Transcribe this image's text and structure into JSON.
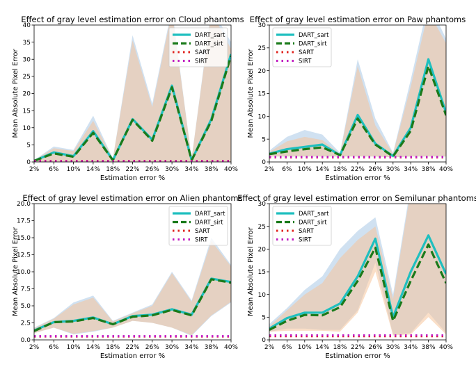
{
  "chart_data": [
    {
      "type": "line",
      "title": "Effect of gray level estimation error on Cloud phantoms",
      "xlabel": "Estimation error %",
      "ylabel": "Mean Absolute Pixel Error",
      "categories": [
        "2%",
        "6%",
        "10%",
        "14%",
        "18%",
        "22%",
        "26%",
        "30%",
        "34%",
        "38%",
        "40%"
      ],
      "ylim": [
        0,
        40
      ],
      "yticks": [
        0,
        5,
        10,
        15,
        20,
        25,
        30,
        35,
        40
      ],
      "legend": "top-right",
      "series": [
        {
          "name": "DART_sart",
          "style": "solid",
          "color": "#1fbfbf",
          "values": [
            0.3,
            2.8,
            1.7,
            9.0,
            0.5,
            12.5,
            6.5,
            22.3,
            0.5,
            12.5,
            31.5
          ],
          "band_low": [
            0,
            0,
            0,
            0,
            0,
            0,
            0,
            0,
            0,
            0,
            0
          ],
          "band_high": [
            0.5,
            4.5,
            3.5,
            13.5,
            1.0,
            37.0,
            17.0,
            45.0,
            1.0,
            45.0,
            35.0
          ]
        },
        {
          "name": "DART_sirt",
          "style": "dashed",
          "color": "#1a7a1a",
          "values": [
            0.3,
            2.5,
            1.5,
            8.5,
            0.5,
            12.3,
            6.2,
            21.8,
            0.5,
            12.0,
            31.0
          ],
          "band_low": [
            0,
            0,
            0,
            0,
            0,
            0,
            0,
            0,
            0,
            0,
            0
          ],
          "band_high": [
            0.5,
            4.0,
            3.2,
            12.0,
            1.0,
            35.5,
            16.0,
            44.0,
            1.0,
            44.0,
            33.0
          ]
        },
        {
          "name": "SART",
          "style": "dotted",
          "color": "#e0201b",
          "values": [
            0.3,
            0.3,
            0.3,
            0.3,
            0.3,
            0.3,
            0.3,
            0.3,
            0.3,
            0.3,
            0.3
          ]
        },
        {
          "name": "SIRT",
          "style": "dotted",
          "color": "#c019c0",
          "values": [
            0.2,
            0.2,
            0.2,
            0.2,
            0.2,
            0.2,
            0.2,
            0.2,
            0.2,
            0.2,
            0.2
          ]
        }
      ]
    },
    {
      "type": "line",
      "title": "Effect of gray level estimation error on Paw phantoms",
      "xlabel": "Estimation error %",
      "ylabel": "Mean Absolute Pixel Error",
      "categories": [
        "2%",
        "6%",
        "10%",
        "14%",
        "18%",
        "22%",
        "26%",
        "30%",
        "34%",
        "38%",
        "40%"
      ],
      "ylim": [
        0,
        30
      ],
      "yticks": [
        0,
        5,
        10,
        15,
        20,
        25,
        30
      ],
      "legend": "top-left",
      "series": [
        {
          "name": "DART_sart",
          "style": "solid",
          "color": "#1fbfbf",
          "values": [
            1.8,
            2.8,
            3.3,
            3.8,
            1.5,
            10.3,
            4.0,
            1.3,
            7.5,
            22.5,
            10.8
          ],
          "band_low": [
            1.2,
            1.2,
            1.2,
            1.2,
            1.2,
            1.2,
            1.2,
            1.0,
            1.2,
            1.2,
            1.2
          ],
          "band_high": [
            2.5,
            5.5,
            7.0,
            6.0,
            2.0,
            22.5,
            9.5,
            2.0,
            18.0,
            35.0,
            27.0
          ]
        },
        {
          "name": "DART_sirt",
          "style": "dashed",
          "color": "#1a7a1a",
          "values": [
            1.7,
            2.3,
            2.8,
            3.2,
            1.5,
            9.5,
            3.8,
            1.2,
            6.8,
            21.0,
            10.2
          ],
          "band_low": [
            1.2,
            1.2,
            1.2,
            1.2,
            1.2,
            1.2,
            1.2,
            1.0,
            1.2,
            1.2,
            1.2
          ],
          "band_high": [
            2.2,
            4.5,
            5.5,
            4.8,
            1.8,
            21.0,
            8.0,
            1.8,
            16.5,
            33.0,
            26.0
          ]
        },
        {
          "name": "SART",
          "style": "dotted",
          "color": "#e0201b",
          "values": [
            1.0,
            1.0,
            1.0,
            1.0,
            1.0,
            1.0,
            1.0,
            1.0,
            1.0,
            1.0,
            1.0
          ]
        },
        {
          "name": "SIRT",
          "style": "dotted",
          "color": "#c019c0",
          "values": [
            1.1,
            1.1,
            1.1,
            1.1,
            1.1,
            1.1,
            1.1,
            1.1,
            1.1,
            1.1,
            1.1
          ]
        }
      ]
    },
    {
      "type": "line",
      "title": "Effect of gray level estimation error on Alien phantoms",
      "xlabel": "Estimation error %",
      "ylabel": "Mean Absolute Pixel Error",
      "categories": [
        "2%",
        "6%",
        "10%",
        "14%",
        "18%",
        "22%",
        "26%",
        "30%",
        "34%",
        "38%",
        "40%"
      ],
      "ylim": [
        0,
        20
      ],
      "yticks": [
        0.0,
        2.5,
        5.0,
        7.5,
        10.0,
        12.5,
        15.0,
        17.5,
        20.0
      ],
      "ytick_labels": [
        "0.0",
        "2.5",
        "5.0",
        "7.5",
        "10.0",
        "12.5",
        "15.0",
        "17.5",
        "20.0"
      ],
      "legend": "top-right",
      "series": [
        {
          "name": "DART_sart",
          "style": "solid",
          "color": "#1fbfbf",
          "values": [
            1.4,
            2.6,
            2.8,
            3.3,
            2.3,
            3.5,
            3.7,
            4.5,
            3.7,
            9.0,
            8.5
          ],
          "band_low": [
            1.0,
            1.8,
            0.8,
            1.2,
            1.8,
            2.8,
            2.5,
            1.8,
            0.6,
            3.5,
            5.5
          ],
          "band_high": [
            1.8,
            3.2,
            5.5,
            6.5,
            2.8,
            4.0,
            5.2,
            10.0,
            5.8,
            15.0,
            11.0
          ]
        },
        {
          "name": "DART_sirt",
          "style": "dashed",
          "color": "#1a7a1a",
          "values": [
            1.3,
            2.6,
            2.7,
            3.2,
            2.3,
            3.4,
            3.6,
            4.4,
            3.6,
            8.9,
            8.4
          ],
          "band_low": [
            1.0,
            1.8,
            0.9,
            1.3,
            1.8,
            2.8,
            2.5,
            1.8,
            0.7,
            3.6,
            5.6
          ],
          "band_high": [
            1.7,
            3.1,
            5.2,
            6.2,
            2.7,
            3.9,
            5.0,
            9.8,
            5.6,
            14.5,
            10.8
          ]
        },
        {
          "name": "SART",
          "style": "dotted",
          "color": "#e0201b",
          "values": [
            0.5,
            0.5,
            0.5,
            0.5,
            0.5,
            0.5,
            0.5,
            0.5,
            0.5,
            0.5,
            0.5
          ]
        },
        {
          "name": "SIRT",
          "style": "dotted",
          "color": "#c019c0",
          "values": [
            0.55,
            0.55,
            0.55,
            0.55,
            0.55,
            0.55,
            0.55,
            0.55,
            0.55,
            0.55,
            0.55
          ]
        }
      ]
    },
    {
      "type": "line",
      "title": "Effect of gray level estimation error on Semilunar phantoms",
      "xlabel": "Estimation error %",
      "ylabel": "Mean Absolute Pixel Error",
      "categories": [
        "2%",
        "6%",
        "10%",
        "14%",
        "18%",
        "22%",
        "26%",
        "30%",
        "34%",
        "38%",
        "40%"
      ],
      "ylim": [
        0,
        30
      ],
      "yticks": [
        0,
        5,
        10,
        15,
        20,
        25,
        30
      ],
      "legend": "top-left",
      "series": [
        {
          "name": "DART_sart",
          "style": "solid",
          "color": "#1fbfbf",
          "values": [
            2.5,
            4.8,
            6.0,
            6.0,
            8.0,
            14.0,
            22.3,
            5.0,
            15.0,
            23.0,
            14.5
          ],
          "band_low": [
            1.8,
            2.5,
            2.5,
            2.2,
            2.2,
            6.5,
            17.0,
            1.2,
            1.5,
            6.0,
            1.5
          ],
          "band_high": [
            3.5,
            7.0,
            11.0,
            14.0,
            20.0,
            24.0,
            27.0,
            10.0,
            34.0,
            40.0,
            34.0
          ]
        },
        {
          "name": "DART_sirt",
          "style": "dashed",
          "color": "#1a7a1a",
          "values": [
            2.2,
            4.2,
            5.5,
            5.4,
            7.2,
            13.0,
            20.3,
            4.2,
            13.0,
            21.0,
            12.5
          ],
          "band_low": [
            1.8,
            2.0,
            2.0,
            2.0,
            1.8,
            6.0,
            15.0,
            1.0,
            1.2,
            5.0,
            1.2
          ],
          "band_high": [
            3.0,
            6.5,
            10.0,
            12.5,
            18.0,
            22.0,
            25.0,
            9.0,
            33.0,
            39.0,
            33.0
          ]
        },
        {
          "name": "SART",
          "style": "dotted",
          "color": "#e0201b",
          "values": [
            0.8,
            0.8,
            0.8,
            0.8,
            0.8,
            0.8,
            0.8,
            0.8,
            0.8,
            0.8,
            0.8
          ]
        },
        {
          "name": "SIRT",
          "style": "dotted",
          "color": "#c019c0",
          "values": [
            1.0,
            1.0,
            1.0,
            1.0,
            1.0,
            1.0,
            1.0,
            1.0,
            1.0,
            1.0,
            1.0
          ]
        }
      ]
    }
  ]
}
